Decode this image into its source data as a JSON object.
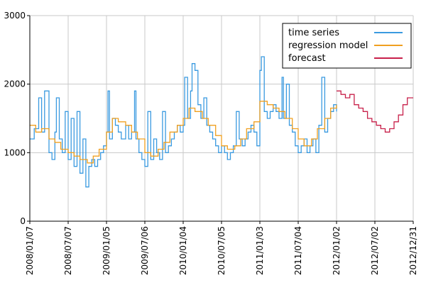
{
  "chart_data": {
    "type": "line",
    "title": "",
    "xlabel": "",
    "ylabel": "",
    "ylim": [
      0,
      3000
    ],
    "xlim": [
      "2008-01-07",
      "2012-12-31"
    ],
    "grid": true,
    "legend_position": "top-right",
    "y_ticks": [
      "0",
      "1000",
      "2000",
      "3000"
    ],
    "x_ticks": [
      "2008/01/07",
      "2008/07/07",
      "2009/01/05",
      "2009/07/06",
      "2010/01/04",
      "2010/07/05",
      "2011/01/03",
      "2011/07/04",
      "2012/01/02",
      "2012/07/02",
      "2012/12/31"
    ],
    "series": [
      {
        "name": "time series",
        "color": "#3a9ae0",
        "step": true,
        "points": [
          [
            "2008-01-07",
            1200
          ],
          [
            "2008-01-28",
            1350
          ],
          [
            "2008-02-18",
            1800
          ],
          [
            "2008-03-03",
            1300
          ],
          [
            "2008-03-17",
            1900
          ],
          [
            "2008-04-07",
            1000
          ],
          [
            "2008-04-21",
            900
          ],
          [
            "2008-05-05",
            1300
          ],
          [
            "2008-05-12",
            1800
          ],
          [
            "2008-05-26",
            1200
          ],
          [
            "2008-06-09",
            1000
          ],
          [
            "2008-06-23",
            1600
          ],
          [
            "2008-07-07",
            900
          ],
          [
            "2008-07-21",
            1500
          ],
          [
            "2008-08-04",
            800
          ],
          [
            "2008-08-18",
            1600
          ],
          [
            "2008-09-01",
            700
          ],
          [
            "2008-09-15",
            1200
          ],
          [
            "2008-09-29",
            500
          ],
          [
            "2008-10-13",
            800
          ],
          [
            "2008-10-27",
            900
          ],
          [
            "2008-11-10",
            800
          ],
          [
            "2008-11-24",
            900
          ],
          [
            "2008-12-08",
            1000
          ],
          [
            "2008-12-22",
            1100
          ],
          [
            "2009-01-05",
            1300
          ],
          [
            "2009-01-12",
            1900
          ],
          [
            "2009-01-19",
            1200
          ],
          [
            "2009-02-02",
            1500
          ],
          [
            "2009-02-16",
            1400
          ],
          [
            "2009-03-02",
            1300
          ],
          [
            "2009-03-16",
            1200
          ],
          [
            "2009-04-06",
            1400
          ],
          [
            "2009-04-20",
            1200
          ],
          [
            "2009-05-04",
            1300
          ],
          [
            "2009-05-18",
            1900
          ],
          [
            "2009-05-25",
            1200
          ],
          [
            "2009-06-08",
            1000
          ],
          [
            "2009-06-22",
            900
          ],
          [
            "2009-07-06",
            800
          ],
          [
            "2009-07-20",
            1600
          ],
          [
            "2009-08-03",
            900
          ],
          [
            "2009-08-17",
            1200
          ],
          [
            "2009-08-31",
            1000
          ],
          [
            "2009-09-14",
            900
          ],
          [
            "2009-09-28",
            1600
          ],
          [
            "2009-10-12",
            1000
          ],
          [
            "2009-10-26",
            1100
          ],
          [
            "2009-11-09",
            1200
          ],
          [
            "2009-11-23",
            1300
          ],
          [
            "2009-12-07",
            1400
          ],
          [
            "2009-12-21",
            1300
          ],
          [
            "2010-01-04",
            1400
          ],
          [
            "2010-01-11",
            2100
          ],
          [
            "2010-01-25",
            1500
          ],
          [
            "2010-02-08",
            1900
          ],
          [
            "2010-02-15",
            2300
          ],
          [
            "2010-03-01",
            2200
          ],
          [
            "2010-03-15",
            1700
          ],
          [
            "2010-03-29",
            1500
          ],
          [
            "2010-04-12",
            1800
          ],
          [
            "2010-04-26",
            1400
          ],
          [
            "2010-05-10",
            1300
          ],
          [
            "2010-05-24",
            1200
          ],
          [
            "2010-06-07",
            1100
          ],
          [
            "2010-06-21",
            1000
          ],
          [
            "2010-07-05",
            1100
          ],
          [
            "2010-07-19",
            1000
          ],
          [
            "2010-08-02",
            900
          ],
          [
            "2010-08-16",
            1000
          ],
          [
            "2010-08-30",
            1100
          ],
          [
            "2010-09-13",
            1600
          ],
          [
            "2010-09-27",
            1200
          ],
          [
            "2010-10-11",
            1100
          ],
          [
            "2010-10-25",
            1200
          ],
          [
            "2010-11-08",
            1300
          ],
          [
            "2010-11-22",
            1400
          ],
          [
            "2010-12-06",
            1300
          ],
          [
            "2010-12-20",
            1100
          ],
          [
            "2011-01-03",
            2200
          ],
          [
            "2011-01-10",
            2400
          ],
          [
            "2011-01-24",
            1600
          ],
          [
            "2011-02-07",
            1500
          ],
          [
            "2011-02-21",
            1600
          ],
          [
            "2011-03-07",
            1700
          ],
          [
            "2011-03-21",
            1600
          ],
          [
            "2011-04-04",
            1500
          ],
          [
            "2011-04-18",
            2100
          ],
          [
            "2011-04-25",
            1500
          ],
          [
            "2011-05-09",
            2000
          ],
          [
            "2011-05-23",
            1400
          ],
          [
            "2011-06-06",
            1300
          ],
          [
            "2011-06-20",
            1100
          ],
          [
            "2011-07-04",
            1000
          ],
          [
            "2011-07-18",
            1100
          ],
          [
            "2011-08-01",
            1200
          ],
          [
            "2011-08-15",
            1000
          ],
          [
            "2011-08-29",
            1100
          ],
          [
            "2011-09-12",
            1200
          ],
          [
            "2011-09-26",
            1000
          ],
          [
            "2011-10-10",
            1400
          ],
          [
            "2011-10-24",
            2100
          ],
          [
            "2011-11-07",
            1300
          ],
          [
            "2011-11-21",
            1500
          ],
          [
            "2011-12-05",
            1600
          ],
          [
            "2011-12-19",
            1700
          ],
          [
            "2012-01-02",
            1600
          ]
        ]
      },
      {
        "name": "regression model",
        "color": "#f0a020",
        "step": true,
        "points": [
          [
            "2008-01-07",
            1400
          ],
          [
            "2008-02-04",
            1300
          ],
          [
            "2008-03-03",
            1350
          ],
          [
            "2008-04-07",
            1200
          ],
          [
            "2008-05-05",
            1150
          ],
          [
            "2008-06-02",
            1050
          ],
          [
            "2008-07-07",
            1000
          ],
          [
            "2008-08-04",
            950
          ],
          [
            "2008-09-01",
            900
          ],
          [
            "2008-10-06",
            850
          ],
          [
            "2008-11-03",
            950
          ],
          [
            "2008-12-01",
            1050
          ],
          [
            "2009-01-05",
            1300
          ],
          [
            "2009-02-02",
            1500
          ],
          [
            "2009-03-02",
            1450
          ],
          [
            "2009-04-06",
            1400
          ],
          [
            "2009-05-04",
            1300
          ],
          [
            "2009-06-01",
            1200
          ],
          [
            "2009-07-06",
            1000
          ],
          [
            "2009-08-03",
            950
          ],
          [
            "2009-09-07",
            1050
          ],
          [
            "2009-10-05",
            1150
          ],
          [
            "2009-11-02",
            1300
          ],
          [
            "2009-12-07",
            1400
          ],
          [
            "2010-01-04",
            1500
          ],
          [
            "2010-02-01",
            1650
          ],
          [
            "2010-03-01",
            1600
          ],
          [
            "2010-04-05",
            1500
          ],
          [
            "2010-05-03",
            1400
          ],
          [
            "2010-06-07",
            1250
          ],
          [
            "2010-07-05",
            1100
          ],
          [
            "2010-08-02",
            1050
          ],
          [
            "2010-09-06",
            1100
          ],
          [
            "2010-10-04",
            1200
          ],
          [
            "2010-11-01",
            1350
          ],
          [
            "2010-12-06",
            1450
          ],
          [
            "2011-01-03",
            1750
          ],
          [
            "2011-02-07",
            1700
          ],
          [
            "2011-03-07",
            1650
          ],
          [
            "2011-04-04",
            1600
          ],
          [
            "2011-05-02",
            1500
          ],
          [
            "2011-06-06",
            1350
          ],
          [
            "2011-07-04",
            1200
          ],
          [
            "2011-08-01",
            1100
          ],
          [
            "2011-09-05",
            1200
          ],
          [
            "2011-10-03",
            1350
          ],
          [
            "2011-11-07",
            1500
          ],
          [
            "2011-12-05",
            1650
          ],
          [
            "2012-01-02",
            1700
          ]
        ]
      },
      {
        "name": "forecast",
        "color": "#c8204a",
        "step": true,
        "points": [
          [
            "2012-01-02",
            1900
          ],
          [
            "2012-01-23",
            1850
          ],
          [
            "2012-02-13",
            1800
          ],
          [
            "2012-03-05",
            1850
          ],
          [
            "2012-03-26",
            1700
          ],
          [
            "2012-04-16",
            1650
          ],
          [
            "2012-05-07",
            1600
          ],
          [
            "2012-05-28",
            1500
          ],
          [
            "2012-06-18",
            1450
          ],
          [
            "2012-07-09",
            1400
          ],
          [
            "2012-07-30",
            1350
          ],
          [
            "2012-08-20",
            1300
          ],
          [
            "2012-09-10",
            1350
          ],
          [
            "2012-10-01",
            1450
          ],
          [
            "2012-10-22",
            1550
          ],
          [
            "2012-11-12",
            1700
          ],
          [
            "2012-12-03",
            1800
          ],
          [
            "2012-12-31",
            1800
          ]
        ]
      }
    ]
  }
}
